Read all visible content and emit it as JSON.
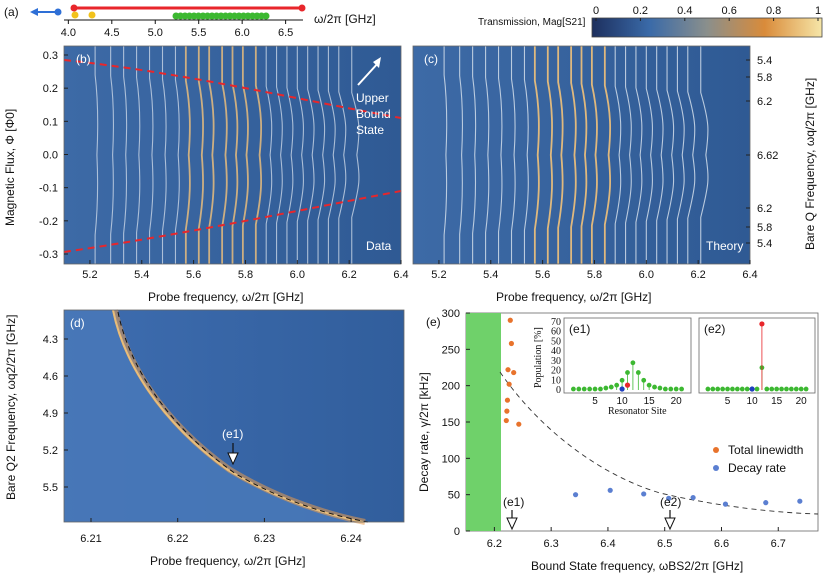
{
  "panel_a": {
    "label": "(a)",
    "axis_label": "ω/2π [GHz]",
    "ticks": [
      "4.0",
      "4.5",
      "5.0",
      "5.5",
      "6.0",
      "6.5"
    ],
    "colors": {
      "red": "#e8262b",
      "blue": "#2e6fd6",
      "yellow": "#f2c21b",
      "green": "#3cb831"
    }
  },
  "colorbar": {
    "title": "Transmission, Mag[S21]",
    "ticks": [
      "0",
      "0.2",
      "0.4",
      "0.6",
      "0.8",
      "1"
    ],
    "colors": [
      "#1d2f5e",
      "#3a6aa8",
      "#7d8fa0",
      "#d98b3a",
      "#f6e6a8"
    ]
  },
  "panel_b": {
    "label": "(b)",
    "y_label": "Magnetic Flux, Φ [Φ0]",
    "y_ticks": [
      "0.3",
      "0.2",
      "0.1",
      "0.0",
      "-0.1",
      "-0.2",
      "-0.3"
    ],
    "x_ticks": [
      "5.2",
      "5.4",
      "5.6",
      "5.8",
      "6.0",
      "6.2",
      "6.4"
    ],
    "x_label": "Probe frequency, ω/2π [GHz]",
    "annotation": "Upper\nBound\nState",
    "corner": "Data",
    "resonances_ghz": [
      5.22,
      5.28,
      5.33,
      5.38,
      5.43,
      5.48,
      5.53,
      5.57,
      5.62,
      5.66,
      5.71,
      5.75,
      5.79,
      5.84,
      5.88,
      5.92,
      5.96,
      6.0,
      6.04,
      6.08,
      6.12,
      6.16,
      6.21
    ]
  },
  "panel_c": {
    "label": "(c)",
    "corner": "Theory",
    "x_ticks": [
      "5.2",
      "5.4",
      "5.6",
      "5.8",
      "6.0",
      "6.2",
      "6.4"
    ],
    "x_label": "Probe frequency, ω/2π [GHz]",
    "right_ticks": [
      "5.4",
      "5.8",
      "6.2",
      "6.62",
      "6.2",
      "5.8",
      "5.4"
    ],
    "right_label": "Bare Q Frequency, ωq/2π [GHz]"
  },
  "panel_d": {
    "label": "(d)",
    "y_label": "Bare Q2 Frequency, ωq2/2π [GHz]",
    "y_ticks": [
      "4.3",
      "4.6",
      "4.9",
      "5.2",
      "5.5"
    ],
    "x_ticks": [
      "6.21",
      "6.22",
      "6.23",
      "6.24"
    ],
    "x_label": "Probe frequency, ω/2π [GHz]",
    "marker": "(e1)"
  },
  "panel_e": {
    "label": "(e)",
    "y_label": "Decay rate, γ/2π [kHz]",
    "x_label": "Bound State frequency, ωBS2/2π [GHz]",
    "y_ticks": [
      "0",
      "50",
      "100",
      "150",
      "200",
      "250",
      "300"
    ],
    "x_ticks": [
      "6.2",
      "6.3",
      "6.4",
      "6.5",
      "6.6",
      "6.7"
    ],
    "markers": [
      "(e1)",
      "(e2)"
    ],
    "legend": {
      "total": "Total linewidth",
      "decay": "Decay rate"
    },
    "colors": {
      "orange": "#e8732c",
      "blue": "#5b7fd1",
      "band": "#6fd16a"
    }
  },
  "chart_data": [
    {
      "type": "scatter",
      "title": "",
      "xlabel": "Bound State frequency, ωBS2/2π [GHz]",
      "ylabel": "Decay rate, γ/2π [kHz]",
      "xlim": [
        6.15,
        6.77
      ],
      "ylim": [
        0,
        300
      ],
      "series": [
        {
          "name": "Total linewidth",
          "color": "#e8732c",
          "x": [
            6.221,
            6.222,
            6.223,
            6.224,
            6.226,
            6.228,
            6.23,
            6.234,
            6.243
          ],
          "y": [
            152,
            165,
            180,
            222,
            202,
            290,
            258,
            218,
            147
          ]
        },
        {
          "name": "Decay rate",
          "color": "#5b7fd1",
          "x": [
            6.343,
            6.404,
            6.463,
            6.507,
            6.55,
            6.607,
            6.678,
            6.738
          ],
          "y": [
            50,
            56,
            51,
            45,
            46,
            37,
            39,
            41
          ]
        }
      ]
    },
    {
      "type": "scatter",
      "title": "(e1)",
      "xlabel": "Resonator Site",
      "ylabel": "Population [%]",
      "xlim": [
        0,
        22
      ],
      "ylim": [
        0,
        70
      ],
      "series": [
        {
          "name": "",
          "color": "#3cb831",
          "x": [
            1,
            2,
            3,
            4,
            5,
            6,
            7,
            8,
            9,
            10,
            11,
            12,
            13,
            14,
            15,
            16,
            17,
            18,
            19,
            20,
            21
          ],
          "y": [
            1,
            1,
            1,
            1,
            1,
            1,
            2,
            3,
            5,
            10,
            18,
            28,
            18,
            10,
            5,
            3,
            2,
            1,
            1,
            1,
            1
          ]
        }
      ]
    },
    {
      "type": "scatter",
      "title": "(e2)",
      "xlabel": "Resonator Site",
      "ylabel": "Population [%]",
      "xlim": [
        0,
        22
      ],
      "ylim": [
        0,
        70
      ],
      "series": [
        {
          "name": "",
          "color": "#3cb831",
          "x": [
            1,
            2,
            3,
            4,
            5,
            6,
            7,
            8,
            9,
            10,
            11,
            12,
            13,
            14,
            15,
            16,
            17,
            18,
            19,
            20,
            21
          ],
          "y": [
            1,
            1,
            1,
            1,
            1,
            1,
            1,
            1,
            1,
            1,
            1,
            23,
            1,
            1,
            1,
            1,
            1,
            1,
            1,
            1,
            1
          ]
        }
      ]
    }
  ],
  "inset": {
    "y_ticks": [
      "0",
      "10",
      "20",
      "30",
      "40",
      "50",
      "60",
      "70"
    ],
    "x_ticks": [
      "5",
      "10",
      "15",
      "20"
    ],
    "x_label": "Resonator Site",
    "y_label": "Population [%]"
  }
}
